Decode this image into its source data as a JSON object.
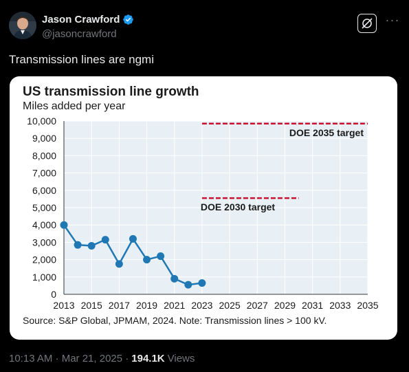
{
  "author": {
    "name": "Jason Crawford",
    "handle": "@jasoncrawford",
    "verified": true,
    "verified_color": "#1d9bf0"
  },
  "header_actions": {
    "grok_icon": "grok-icon",
    "more_label": "···"
  },
  "tweet": {
    "text": "Transmission lines are ngmi"
  },
  "meta": {
    "timestamp": "10:13 AM · Mar 21, 2025 ·",
    "views_count": "194.1K",
    "views_label": "Views"
  },
  "chart_data": {
    "type": "line",
    "title": "US transmission line growth",
    "subtitle": "Miles added per year",
    "source": "Source: S&P Global, JPMAM, 2024. Note: Transmission lines > 100 kV.",
    "xlim": [
      2013,
      2035
    ],
    "ylim": [
      0,
      10000
    ],
    "x_ticks": [
      "2013",
      "2015",
      "2017",
      "2019",
      "2021",
      "2023",
      "2025",
      "2027",
      "2029",
      "2031",
      "2033",
      "2035"
    ],
    "y_ticks": [
      "0",
      "1,000",
      "2,000",
      "3,000",
      "4,000",
      "5,000",
      "6,000",
      "7,000",
      "8,000",
      "9,000",
      "10,000"
    ],
    "series": [
      {
        "x": [
          2013,
          2014,
          2015,
          2016,
          2017,
          2018,
          2019,
          2020,
          2021,
          2022,
          2023
        ],
        "values": [
          4000,
          2850,
          2800,
          3150,
          1750,
          3200,
          2000,
          2200,
          900,
          550,
          650
        ],
        "color": "#1f78b4"
      }
    ],
    "annotations": [
      {
        "label": "DOE 2035 target",
        "value": 9850,
        "x_start": 2023,
        "x_end": 2035,
        "color": "#c8102e"
      },
      {
        "label": "DOE 2030 target",
        "value": 5550,
        "x_start": 2023,
        "x_end": 2030,
        "color": "#c8102e"
      }
    ],
    "plot_background": "#e8f0f5",
    "grid": true
  }
}
